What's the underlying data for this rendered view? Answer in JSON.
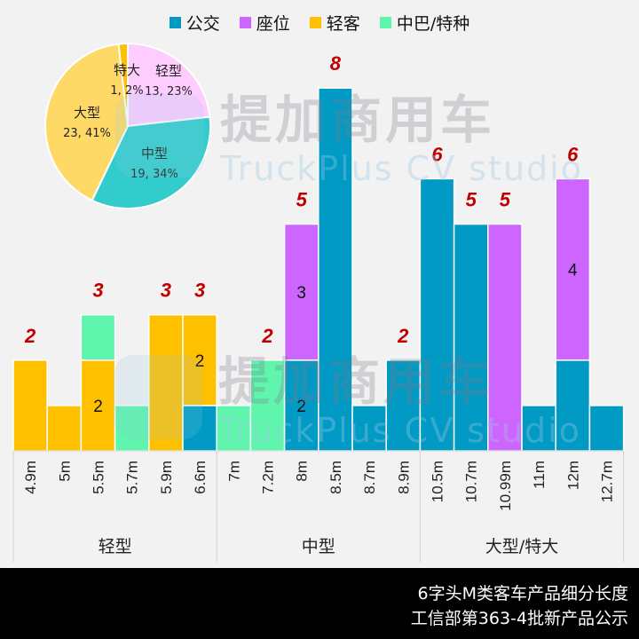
{
  "legend": [
    {
      "name": "公交",
      "color": "#009ac4"
    },
    {
      "name": "座位",
      "color": "#cc66ff"
    },
    {
      "name": "轻客",
      "color": "#ffc000"
    },
    {
      "name": "中巴/特种",
      "color": "#5ff5ad"
    }
  ],
  "watermark": {
    "cn": "提加商用车",
    "en": "TruckPlus CV studio"
  },
  "footer": {
    "line1": "6字头M类客车产品细分长度",
    "line2": "工信部第363-4批新产品公示"
  },
  "chart_data": [
    {
      "type": "bar",
      "stacked": true,
      "title": "",
      "xlabel": "",
      "ylabel": "",
      "ylim": [
        0,
        8
      ],
      "grid": false,
      "legend_position": "top",
      "categories": [
        "4.9m",
        "5m",
        "5.5m",
        "5.7m",
        "5.9m",
        "6.6m",
        "7m",
        "7.2m",
        "8m",
        "8.5m",
        "8.7m",
        "8.9m",
        "10.5m",
        "10.7m",
        "10.99m",
        "11m",
        "12m",
        "12.7m"
      ],
      "groups": [
        {
          "label": "轻型",
          "count": 6
        },
        {
          "label": "中型",
          "count": 6
        },
        {
          "label": "大型/特大",
          "count": 6
        }
      ],
      "series": [
        {
          "name": "公交",
          "color": "#009ac4",
          "values": [
            0,
            0,
            0,
            0,
            0,
            1,
            0,
            0,
            2,
            8,
            1,
            2,
            6,
            5,
            0,
            1,
            2,
            1
          ]
        },
        {
          "name": "座位",
          "color": "#cc66ff",
          "values": [
            0,
            0,
            0,
            0,
            0,
            0,
            0,
            0,
            3,
            0,
            0,
            0,
            0,
            0,
            5,
            0,
            4,
            0
          ]
        },
        {
          "name": "轻客",
          "color": "#ffc000",
          "values": [
            2,
            1,
            2,
            0,
            3,
            2,
            0,
            0,
            0,
            0,
            0,
            0,
            0,
            0,
            0,
            0,
            0,
            0
          ]
        },
        {
          "name": "中巴/特种",
          "color": "#5ff5ad",
          "values": [
            0,
            0,
            1,
            1,
            0,
            0,
            1,
            2,
            0,
            0,
            0,
            0,
            0,
            0,
            0,
            0,
            0,
            0
          ]
        }
      ],
      "segment_labels": [
        {
          "category": "5.5m",
          "series": "轻客",
          "text": "2"
        },
        {
          "category": "6.6m",
          "series": "轻客",
          "text": "2"
        },
        {
          "category": "8m",
          "series": "公交",
          "text": "2"
        },
        {
          "category": "8m",
          "series": "座位",
          "text": "3"
        },
        {
          "category": "12m",
          "series": "座位",
          "text": "4"
        }
      ],
      "total_labels": [
        {
          "category": "4.9m",
          "text": "2"
        },
        {
          "category": "5.5m",
          "text": "3"
        },
        {
          "category": "5.9m",
          "text": "3"
        },
        {
          "category": "6.6m",
          "text": "3"
        },
        {
          "category": "7.2m",
          "text": "2"
        },
        {
          "category": "8m",
          "text": "5"
        },
        {
          "category": "8.5m",
          "text": "8"
        },
        {
          "category": "8.9m",
          "text": "2"
        },
        {
          "category": "10.5m",
          "text": "6"
        },
        {
          "category": "10.7m",
          "text": "5"
        },
        {
          "category": "10.99m",
          "text": "5"
        },
        {
          "category": "12m",
          "text": "6"
        }
      ],
      "total_label_color": "#c00000"
    },
    {
      "type": "pie",
      "title": "",
      "slices": [
        {
          "label": "轻型",
          "value": 13,
          "percent": 23,
          "text": "13, 23%",
          "color": "#ffccff"
        },
        {
          "label": "中型",
          "value": 19,
          "percent": 34,
          "text": "19, 34%",
          "color": "#33cccc"
        },
        {
          "label": "大型",
          "value": 23,
          "percent": 41,
          "text": "23, 41%",
          "color": "#ffd966"
        },
        {
          "label": "特大",
          "value": 1,
          "percent": 2,
          "text": "1, 2%",
          "color": "#ffc000"
        }
      ]
    }
  ]
}
